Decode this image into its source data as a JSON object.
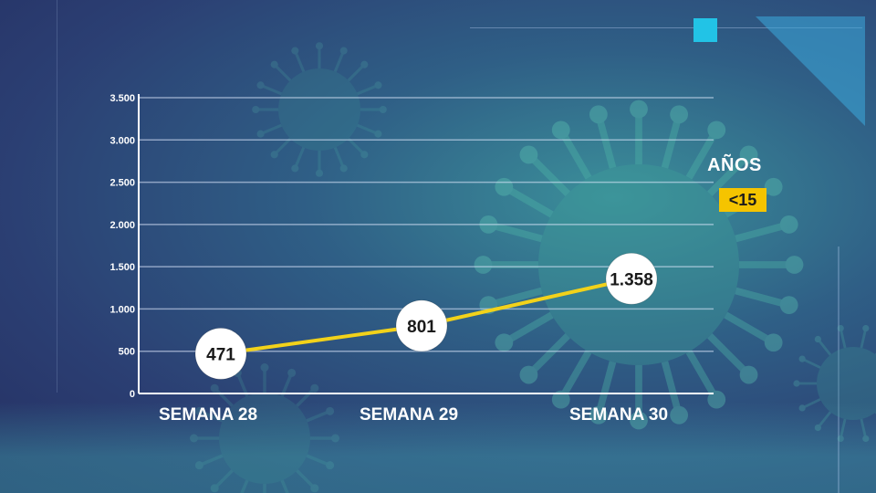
{
  "chart_data": {
    "type": "line",
    "categories": [
      "SEMANA 28",
      "SEMANA 29",
      "SEMANA 30"
    ],
    "series": [
      {
        "values": [
          471,
          801,
          1358
        ]
      }
    ],
    "data_labels": [
      "471",
      "801",
      "1.358"
    ],
    "y_ticks": [
      0,
      500,
      1000,
      1500,
      2000,
      2500,
      3000,
      3500
    ],
    "y_tick_labels": [
      "0",
      "500",
      "1.000",
      "1.500",
      "2.000",
      "2.500",
      "3.000",
      "3.500"
    ],
    "ylim": [
      0,
      3500
    ],
    "grid": true,
    "line_color": "#f2d21a",
    "legend": {
      "title": "AÑOS",
      "badge": "<15",
      "badge_color": "#f5c400"
    }
  }
}
